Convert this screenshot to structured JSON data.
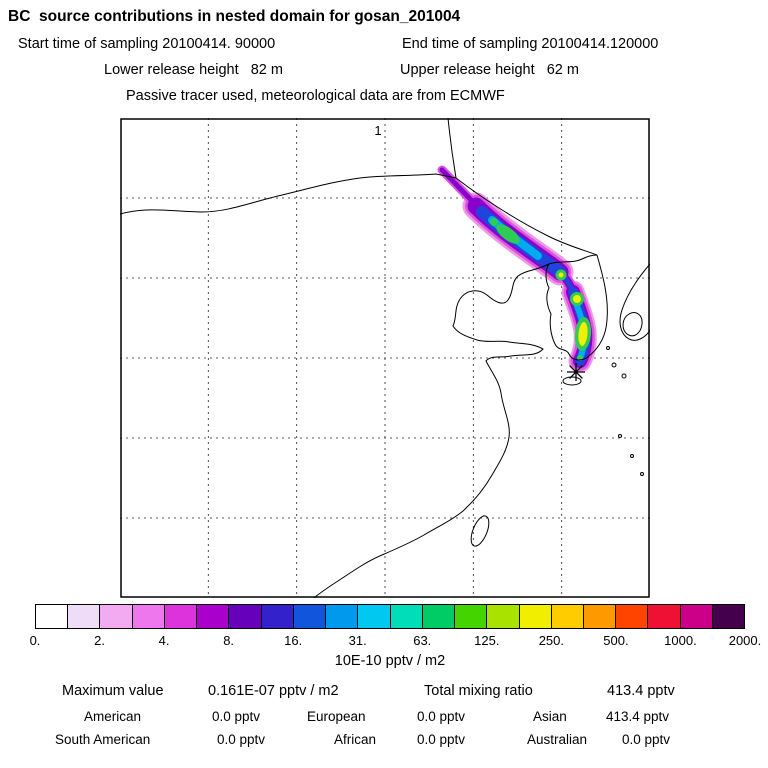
{
  "header": {
    "title": "BC  source contributions in nested domain for gosan_201004",
    "start_time": "Start time of sampling 20100414. 90000",
    "end_time": "End time of sampling 20100414.120000",
    "lower_release": "Lower release height   82 m",
    "upper_release": "Upper release height   62 m",
    "tracer_info": "Passive tracer used, meteorological data are from ECMWF"
  },
  "map": {
    "station_label": "1"
  },
  "colorbar": {
    "unit": "10E-10 pptv / m2",
    "ticks": [
      "0.",
      "2.",
      "4.",
      "8.",
      "16.",
      "31.",
      "63.",
      "125.",
      "250.",
      "500.",
      "1000.",
      "2000."
    ],
    "colors": [
      "#ffffff",
      "#efddf7",
      "#f2aaf0",
      "#ee77ee",
      "#dd33dd",
      "#aa00cc",
      "#6600bb",
      "#3322cc",
      "#1155dd",
      "#0099ee",
      "#00c8f0",
      "#00ddb8",
      "#00cc66",
      "#44d400",
      "#aae200",
      "#f2ee00",
      "#ffcc00",
      "#ff9900",
      "#ff4400",
      "#ee1133",
      "#cc0088",
      "#44004d"
    ]
  },
  "stats": {
    "max_label": "Maximum value",
    "max_value": "0.161E-07 pptv / m2",
    "total_label": "Total mixing ratio",
    "total_value": "413.4 pptv",
    "rows": [
      {
        "label": "American",
        "value": "0.0 pptv"
      },
      {
        "label": "European",
        "value": "0.0 pptv"
      },
      {
        "label": "Asian",
        "value": "413.4 pptv"
      },
      {
        "label": "South American",
        "value": "0.0 pptv"
      },
      {
        "label": "African",
        "value": "0.0 pptv"
      },
      {
        "label": "Australian",
        "value": "0.0 pptv"
      }
    ]
  },
  "chart_data": {
    "type": "heatmap",
    "title": "BC source contributions in nested domain for gosan_201004",
    "subtitle": [
      "Start time of sampling 20100414. 90000",
      "End time of sampling 20100414.120000",
      "Lower release height 82 m",
      "Upper release height 62 m",
      "Passive tracer used, meteorological data are from ECMWF"
    ],
    "map_region": "East Asia (China, Korea, Japan), nested model domain with 6x6 dashed grid",
    "station": {
      "name": "Gosan (Jeju)",
      "marker": "asterisk",
      "number_label": "1"
    },
    "plume": "Emission-sensitivity plume extends from northeast China southeast across the Korean peninsula to the receptor at Gosan; core values reach the 125-250 color bin (yellow-green), edges at low bins (violet/magenta)",
    "colorbar_unit": "10E-10 pptv / m2",
    "colorbar_levels": [
      0,
      2,
      4,
      8,
      16,
      31,
      63,
      125,
      250,
      500,
      1000,
      2000
    ],
    "maximum_value": "0.161E-07 pptv / m2",
    "total_mixing_ratio_pptv": 413.4,
    "contributions_pptv": {
      "American": 0.0,
      "European": 0.0,
      "Asian": 413.4,
      "South American": 0.0,
      "African": 0.0,
      "Australian": 0.0
    },
    "legend_position": "bottom horizontal colorbar",
    "grid": {
      "rows": 6,
      "cols": 6,
      "style": "dashed"
    }
  }
}
